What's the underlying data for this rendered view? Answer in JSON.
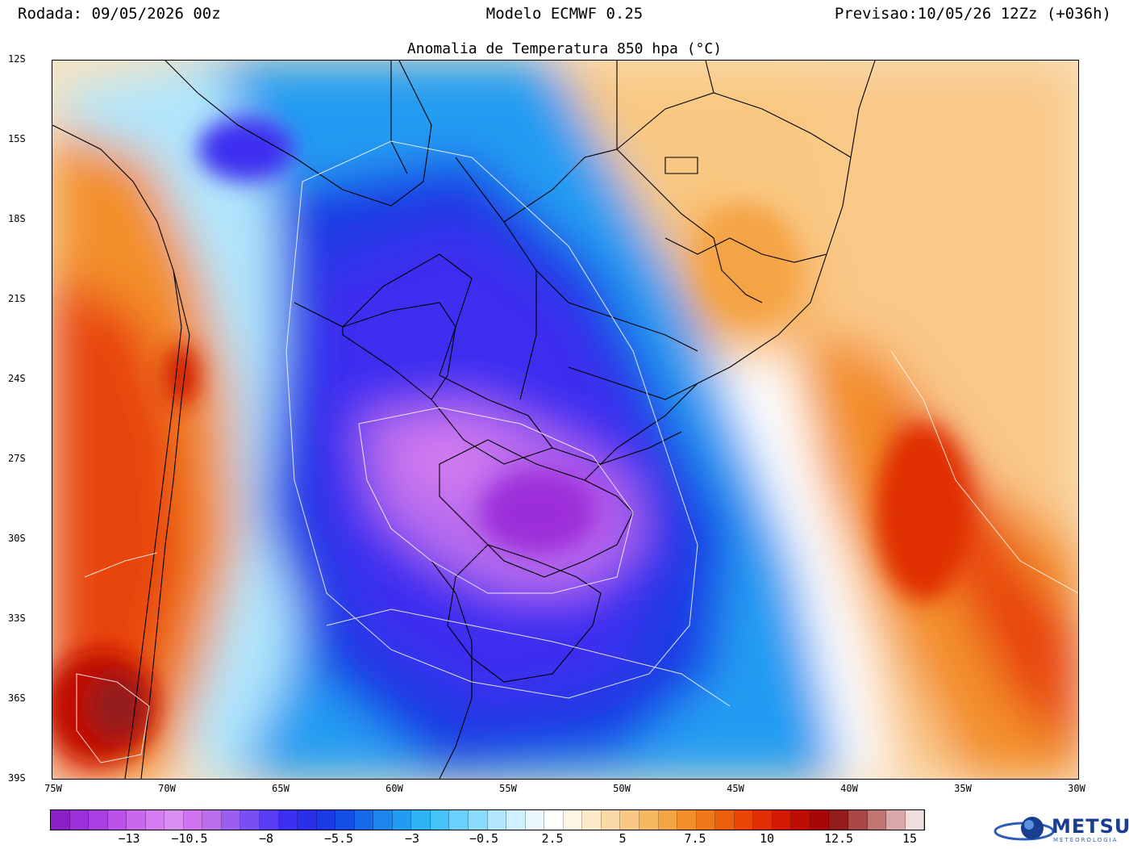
{
  "header": {
    "run": "Rodada: 09/05/2026 00z",
    "model": "Modelo ECMWF 0.25",
    "forecast": "Previsao:10/05/26 12Zz (+036h)",
    "title": "Anomalia de Temperatura 850 hpa (°C)"
  },
  "map": {
    "lat_labels": [
      "12S",
      "15S",
      "18S",
      "21S",
      "24S",
      "27S",
      "30S",
      "33S",
      "36S",
      "39S"
    ],
    "lon_labels": [
      "75W",
      "70W",
      "65W",
      "60W",
      "55W",
      "50W",
      "45W",
      "40W",
      "35W",
      "30W"
    ],
    "lat_range": [
      -39,
      -12
    ],
    "lon_range": [
      -75,
      -30
    ],
    "field": "850 hPa temperature anomaly",
    "features": [
      {
        "name": "cold core",
        "value_min": -13,
        "lon": -54,
        "lat": -28
      },
      {
        "name": "warm anomaly west (Chile/Argentina)",
        "value_max": 15,
        "lon": -72,
        "lat": -36
      },
      {
        "name": "warm anomaly Atlantic",
        "value_max": 10,
        "lon": -35,
        "lat": -30
      },
      {
        "name": "warm anomaly central Brazil",
        "value_max": 5,
        "lon": -46,
        "lat": -18
      }
    ]
  },
  "colorbar": {
    "labels": [
      "−13",
      "−10.5",
      "−8",
      "−5.5",
      "−3",
      "−0.5",
      "2.5",
      "5",
      "7.5",
      "10",
      "12.5",
      "15"
    ],
    "colors": [
      "#8a1fc7",
      "#9c2fd9",
      "#ab3fe3",
      "#bb51ea",
      "#c967ee",
      "#d47cf0",
      "#d98ff2",
      "#cf73ee",
      "#b96ded",
      "#9a5ff0",
      "#7a4ff2",
      "#5a3cf2",
      "#3c2ff0",
      "#2a2fe8",
      "#1c3ae4",
      "#1450e6",
      "#166ae9",
      "#1c84ee",
      "#229cf2",
      "#2eb2f6",
      "#45c3f8",
      "#68d0fa",
      "#8ddbfb",
      "#b1e6fc",
      "#d1f0fd",
      "#eaf8fe",
      "#ffffff",
      "#fff5e6",
      "#fde8c8",
      "#fbd9a6",
      "#f9c983",
      "#f7b862",
      "#f5a444",
      "#f38f2b",
      "#f07818",
      "#ec5f0c",
      "#e84507",
      "#e02e05",
      "#d21a04",
      "#bf0d04",
      "#a90607",
      "#931b1b",
      "#a94646",
      "#c07575",
      "#d9a8a8",
      "#f0dede"
    ],
    "units": "°C"
  },
  "logo": {
    "name": "METSUL",
    "subtitle": "METEOROLOGIA"
  }
}
